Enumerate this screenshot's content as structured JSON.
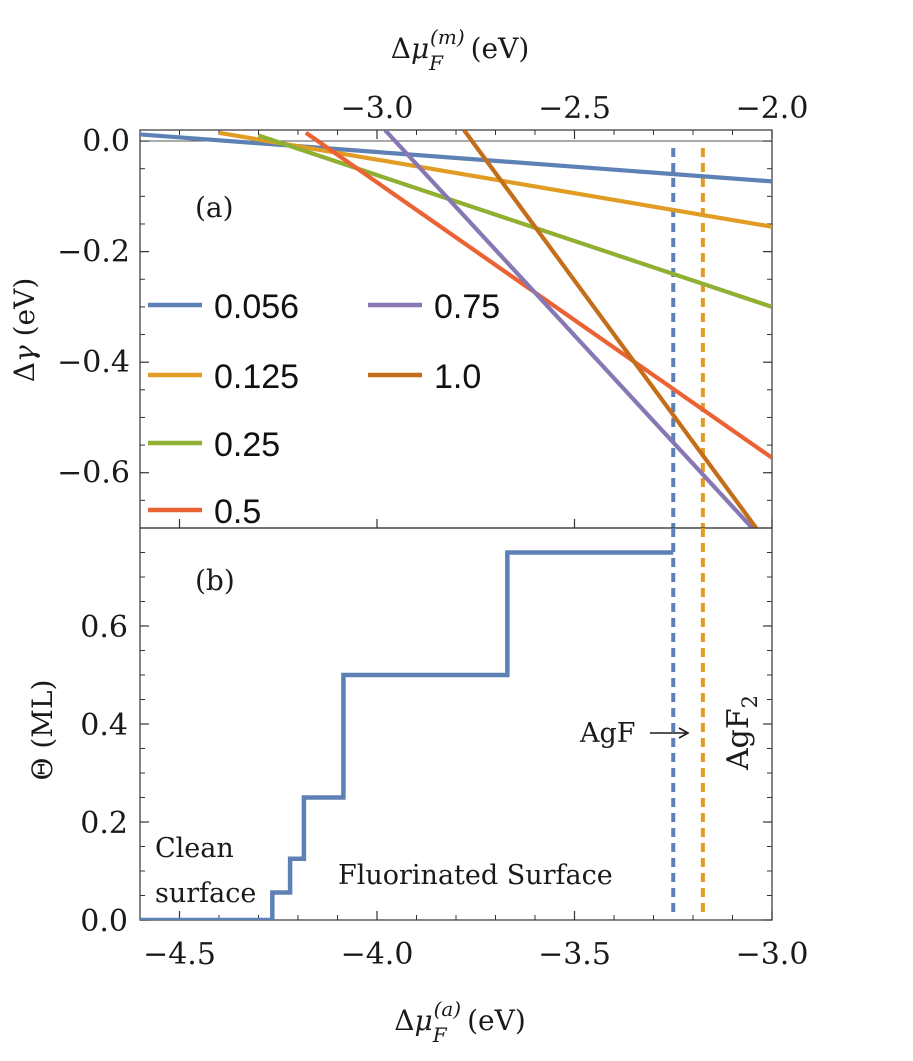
{
  "chart_data": [
    {
      "panel": "(a)",
      "type": "line",
      "ylabel": "Δγ (eV)",
      "xlabel_bottom": "Δμ_F^(a) (eV)",
      "xlabel_top": "Δμ_F^(m) (eV)",
      "xlim": [
        -4.6,
        -3.0
      ],
      "ylim": [
        -0.7,
        0.02
      ],
      "top_axis_offset": 1.0,
      "yticks": [
        0.0,
        -0.2,
        -0.4,
        -0.6
      ],
      "ytick_labels": [
        "0.0",
        "−0.2",
        "−0.4",
        "−0.6"
      ],
      "top_xticks": [
        -3.0,
        -2.5,
        -2.0
      ],
      "top_xtick_labels": [
        "−3.0",
        "−2.5",
        "−2.0"
      ],
      "legend": {
        "placement": "left",
        "columns": 2
      },
      "series": [
        {
          "name": "0.056",
          "color": "#5E81B5",
          "x": [
            -4.6,
            -3.0
          ],
          "y": [
            0.012,
            -0.073
          ]
        },
        {
          "name": "0.125",
          "color": "#E19C24",
          "x": [
            -4.4,
            -3.0
          ],
          "y": [
            0.015,
            -0.155
          ]
        },
        {
          "name": "0.25",
          "color": "#8FB032",
          "x": [
            -4.3,
            -3.0
          ],
          "y": [
            0.01,
            -0.3
          ]
        },
        {
          "name": "0.5",
          "color": "#EB6235",
          "x": [
            -4.18,
            -3.0
          ],
          "y": [
            0.015,
            -0.573
          ]
        },
        {
          "name": "0.75",
          "color": "#8778B3",
          "x": [
            -3.98,
            -3.05
          ],
          "y": [
            0.02,
            -0.7
          ]
        },
        {
          "name": "1.0",
          "color": "#C56E1A",
          "x": [
            -3.78,
            -3.04
          ],
          "y": [
            0.02,
            -0.7
          ]
        }
      ],
      "vlines": [
        {
          "x": -3.25,
          "color": "#5E81B5",
          "style": "dashed"
        },
        {
          "x": -3.175,
          "color": "#E19C24",
          "style": "dashed"
        }
      ]
    },
    {
      "panel": "(b)",
      "type": "line",
      "ylabel": "Θ (ML)",
      "xlabel": "Δμ_F^(a) (eV)",
      "xlim": [
        -4.6,
        -3.0
      ],
      "ylim": [
        0.0,
        0.8
      ],
      "xticks": [
        -4.5,
        -4.0,
        -3.5,
        -3.0
      ],
      "xtick_labels": [
        "−4.5",
        "−4.0",
        "−3.5",
        "−3.0"
      ],
      "yticks": [
        0.0,
        0.2,
        0.4,
        0.6
      ],
      "ytick_labels": [
        "0.0",
        "0.2",
        "0.4",
        "0.6"
      ],
      "series": [
        {
          "color": "#5E81B5",
          "x": [
            -4.6,
            -4.265,
            -4.265,
            -4.22,
            -4.22,
            -4.185,
            -4.185,
            -4.085,
            -4.085,
            -3.67,
            -3.67,
            -3.25
          ],
          "y": [
            0.0,
            0.0,
            0.056,
            0.056,
            0.125,
            0.125,
            0.25,
            0.25,
            0.5,
            0.5,
            0.75,
            0.75
          ]
        }
      ],
      "vlines": [
        {
          "x": -3.25,
          "color": "#5E81B5",
          "style": "dashed"
        },
        {
          "x": -3.175,
          "color": "#E19C24",
          "style": "dashed"
        }
      ],
      "annotations": {
        "clean_line1": "Clean",
        "clean_line2": "surface",
        "fluorinated": "Fluorinated Surface",
        "agf": "AgF",
        "agf2": "AgF"
      }
    }
  ]
}
